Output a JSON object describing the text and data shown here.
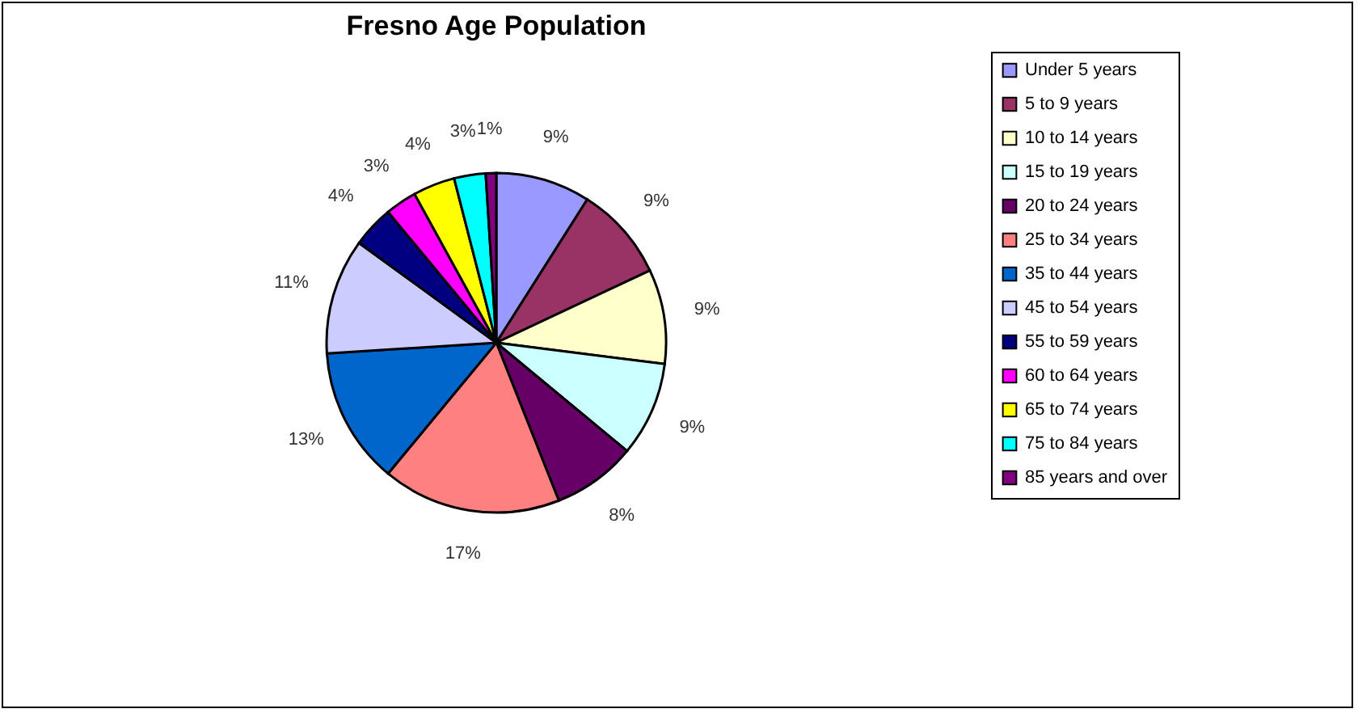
{
  "chart_data": {
    "type": "pie",
    "title": "Fresno Age Population",
    "categories": [
      "Under 5 years",
      "5 to 9 years",
      "10 to 14 years",
      "15 to 19 years",
      "20 to 24 years",
      "25 to 34 years",
      "35 to 44 years",
      "45 to 54 years",
      "55 to 59 years",
      "60 to 64 years",
      "65 to 74 years",
      "75 to 84 years",
      "85 years and over"
    ],
    "values": [
      9,
      9,
      9,
      9,
      8,
      17,
      13,
      11,
      4,
      3,
      4,
      3,
      1
    ],
    "value_labels": [
      "9%",
      "9%",
      "9%",
      "9%",
      "8%",
      "17%",
      "13%",
      "11%",
      "4%",
      "3%",
      "4%",
      "3%",
      "1%"
    ],
    "colors": [
      "#9999ff",
      "#993366",
      "#ffffcc",
      "#ccffff",
      "#660066",
      "#ff8080",
      "#0066cc",
      "#ccccff",
      "#000080",
      "#ff00ff",
      "#ffff00",
      "#00ffff",
      "#800080"
    ],
    "legend": "right"
  }
}
